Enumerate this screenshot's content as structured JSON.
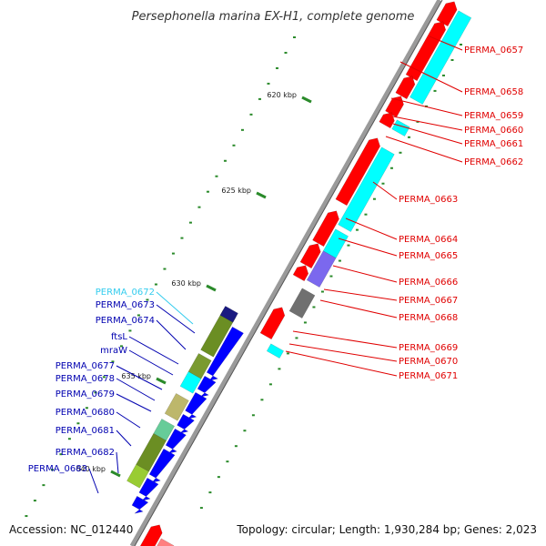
{
  "title": "Persephonella marina EX-H1, complete genome",
  "footer": {
    "accession": "Accession: NC_012440",
    "info": "Topology: circular; Length: 1,930,284 bp; Genes: 2,023"
  },
  "ticks": [
    "620 kbp",
    "625 kbp",
    "630 kbp",
    "635 kbp",
    "640 kbp"
  ],
  "colors": {
    "forward_label": "#e00000",
    "reverse_label": "#0000b0",
    "rna_label": "#33ccee",
    "forward_gene": "#ff0000",
    "reverse_gene": "#0000ff",
    "cyan_gene": "#00ffff",
    "backbone": "#909090",
    "tick_dot": "#2a8a2a"
  },
  "forward_labels": [
    "PERMA_0657",
    "PERMA_0658",
    "PERMA_0659",
    "PERMA_0660",
    "PERMA_0661",
    "PERMA_0662",
    "PERMA_0663",
    "PERMA_0664",
    "PERMA_0665",
    "PERMA_0666",
    "PERMA_0667",
    "PERMA_0668",
    "PERMA_0669",
    "PERMA_0670",
    "PERMA_0671"
  ],
  "reverse_labels": [
    "PERMA_0672",
    "PERMA_0673",
    "PERMA_0674",
    "ftsL",
    "mraW",
    "PERMA_0677",
    "PERMA_0678",
    "PERMA_0679",
    "PERMA_0680",
    "PERMA_0681",
    "PERMA_0682",
    "PERMA_0683"
  ]
}
